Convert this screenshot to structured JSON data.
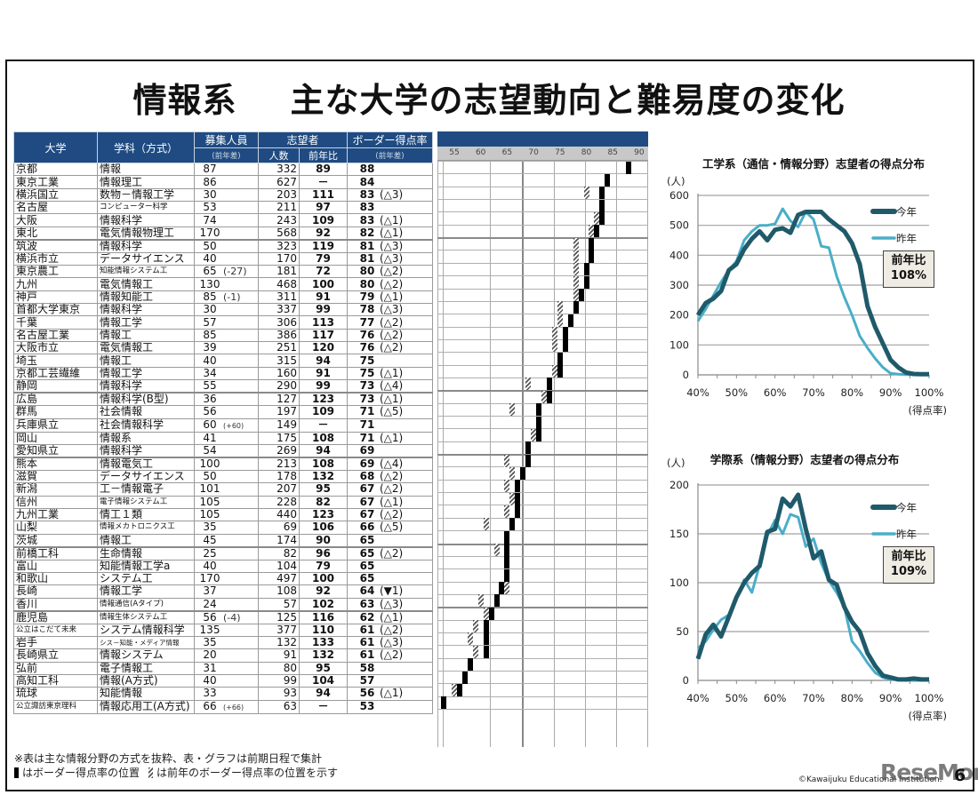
{
  "page": {
    "title_left": "情報系",
    "title_right": "主な大学の志望動向と難易度の変化",
    "page_number": "6",
    "copyright": "©Kawaijuku Educational Institution.",
    "watermark": "ReseMom"
  },
  "table": {
    "headers": {
      "university": "大学",
      "department": "学科（方式）",
      "capacity": "募集人員",
      "capacity_sub": "(前年差)",
      "applicants": "志望者",
      "applicants_count": "人数",
      "applicants_ratio": "前年比",
      "border": "ボーダー得点率",
      "border_sub": "(前年差)"
    },
    "scale_ticks": [
      "55",
      "60",
      "65",
      "70",
      "75",
      "80",
      "85",
      "90"
    ],
    "rows": [
      {
        "uni": "京都",
        "dep": "情報",
        "cap": "87",
        "cap_diff": "",
        "count": "332",
        "ratio": "89",
        "border": "88",
        "border_diff": "",
        "prev": null
      },
      {
        "uni": "東京工業",
        "dep": "情報理工",
        "cap": "86",
        "cap_diff": "",
        "count": "627",
        "ratio": "－",
        "border": "84",
        "border_diff": "",
        "prev": null
      },
      {
        "uni": "横浜国立",
        "dep": "数物－情報工学",
        "cap": "30",
        "cap_diff": "",
        "count": "203",
        "ratio": "111",
        "border": "83",
        "border_diff": "(△3)",
        "prev": 80
      },
      {
        "uni": "名古屋",
        "dep": "コンピューター科学",
        "cap": "53",
        "cap_diff": "",
        "count": "211",
        "ratio": "97",
        "border": "83",
        "border_diff": "",
        "prev": null
      },
      {
        "uni": "大阪",
        "dep": "情報科学",
        "cap": "74",
        "cap_diff": "",
        "count": "243",
        "ratio": "109",
        "border": "83",
        "border_diff": "(△1)",
        "prev": 82
      },
      {
        "uni": "東北",
        "dep": "電気情報物理工",
        "cap": "170",
        "cap_diff": "",
        "count": "568",
        "ratio": "92",
        "border": "82",
        "border_diff": "(△1)",
        "prev": 81
      },
      {
        "uni": "筑波",
        "dep": "情報科学",
        "cap": "50",
        "cap_diff": "",
        "count": "323",
        "ratio": "119",
        "border": "81",
        "border_diff": "(△3)",
        "prev": 78,
        "grp": true
      },
      {
        "uni": "横浜市立",
        "dep": "データサイエンス",
        "cap": "40",
        "cap_diff": "",
        "count": "170",
        "ratio": "79",
        "border": "81",
        "border_diff": "(△3)",
        "prev": 78
      },
      {
        "uni": "東京農工",
        "dep": "知能情報システム工",
        "cap": "65",
        "cap_diff": "(-27)",
        "count": "181",
        "ratio": "72",
        "border": "80",
        "border_diff": "(△2)",
        "prev": 78
      },
      {
        "uni": "九州",
        "dep": "電気情報工",
        "cap": "130",
        "cap_diff": "",
        "count": "468",
        "ratio": "100",
        "border": "80",
        "border_diff": "(△2)",
        "prev": 78
      },
      {
        "uni": "神戸",
        "dep": "情報知能工",
        "cap": "85",
        "cap_diff": "(-1)",
        "count": "311",
        "ratio": "91",
        "border": "79",
        "border_diff": "(△1)",
        "prev": 78
      },
      {
        "uni": "首都大学東京",
        "dep": "情報科学",
        "cap": "30",
        "cap_diff": "",
        "count": "337",
        "ratio": "99",
        "border": "78",
        "border_diff": "(△3)",
        "prev": 75
      },
      {
        "uni": "千葉",
        "dep": "情報工学",
        "cap": "57",
        "cap_diff": "",
        "count": "306",
        "ratio": "113",
        "border": "77",
        "border_diff": "(△2)",
        "prev": 75
      },
      {
        "uni": "名古屋工業",
        "dep": "情報工",
        "cap": "85",
        "cap_diff": "",
        "count": "386",
        "ratio": "117",
        "border": "76",
        "border_diff": "(△2)",
        "prev": 74
      },
      {
        "uni": "大阪市立",
        "dep": "電気情報工",
        "cap": "39",
        "cap_diff": "",
        "count": "251",
        "ratio": "120",
        "border": "76",
        "border_diff": "(△2)",
        "prev": 74
      },
      {
        "uni": "埼玉",
        "dep": "情報工",
        "cap": "40",
        "cap_diff": "",
        "count": "315",
        "ratio": "94",
        "border": "75",
        "border_diff": "",
        "prev": null
      },
      {
        "uni": "京都工芸繊維",
        "dep": "情報工学",
        "cap": "34",
        "cap_diff": "",
        "count": "160",
        "ratio": "91",
        "border": "75",
        "border_diff": "(△1)",
        "prev": 74
      },
      {
        "uni": "静岡",
        "dep": "情報科学",
        "cap": "55",
        "cap_diff": "",
        "count": "290",
        "ratio": "99",
        "border": "73",
        "border_diff": "(△4)",
        "prev": 69
      },
      {
        "uni": "広島",
        "dep": "情報科学(B型)",
        "cap": "36",
        "cap_diff": "",
        "count": "127",
        "ratio": "123",
        "border": "73",
        "border_diff": "(△1)",
        "prev": 72,
        "grp": true
      },
      {
        "uni": "群馬",
        "dep": "社会情報",
        "cap": "56",
        "cap_diff": "",
        "count": "197",
        "ratio": "109",
        "border": "71",
        "border_diff": "(△5)",
        "prev": 66
      },
      {
        "uni": "兵庫県立",
        "dep": "社会情報科学",
        "cap": "60",
        "cap_diff": "(+60)",
        "count": "149",
        "ratio": "－",
        "border": "71",
        "border_diff": "",
        "prev": null
      },
      {
        "uni": "岡山",
        "dep": "情報系",
        "cap": "41",
        "cap_diff": "",
        "count": "175",
        "ratio": "108",
        "border": "71",
        "border_diff": "(△1)",
        "prev": 70
      },
      {
        "uni": "愛知県立",
        "dep": "情報科学",
        "cap": "54",
        "cap_diff": "",
        "count": "269",
        "ratio": "94",
        "border": "69",
        "border_diff": "",
        "prev": null
      },
      {
        "uni": "熊本",
        "dep": "情報電気工",
        "cap": "100",
        "cap_diff": "",
        "count": "213",
        "ratio": "108",
        "border": "69",
        "border_diff": "(△4)",
        "prev": 65,
        "grp": true
      },
      {
        "uni": "滋賀",
        "dep": "データサイエンス",
        "cap": "50",
        "cap_diff": "",
        "count": "178",
        "ratio": "132",
        "border": "68",
        "border_diff": "(△2)",
        "prev": 66
      },
      {
        "uni": "新潟",
        "dep": "工－情報電子",
        "cap": "101",
        "cap_diff": "",
        "count": "207",
        "ratio": "95",
        "border": "67",
        "border_diff": "(△2)",
        "prev": 65
      },
      {
        "uni": "信州",
        "dep": "電子情報システム工",
        "cap": "105",
        "cap_diff": "",
        "count": "228",
        "ratio": "82",
        "border": "67",
        "border_diff": "(△1)",
        "prev": 66
      },
      {
        "uni": "九州工業",
        "dep": "情工１類",
        "cap": "105",
        "cap_diff": "",
        "count": "440",
        "ratio": "123",
        "border": "67",
        "border_diff": "(△2)",
        "prev": 65
      },
      {
        "uni": "山梨",
        "dep": "情報メカトロニクス工",
        "cap": "35",
        "cap_diff": "",
        "count": "69",
        "ratio": "106",
        "border": "66",
        "border_diff": "(△5)",
        "prev": 61
      },
      {
        "uni": "茨城",
        "dep": "情報工",
        "cap": "45",
        "cap_diff": "",
        "count": "174",
        "ratio": "90",
        "border": "65",
        "border_diff": "",
        "prev": null
      },
      {
        "uni": "前橋工科",
        "dep": "生命情報",
        "cap": "25",
        "cap_diff": "",
        "count": "82",
        "ratio": "96",
        "border": "65",
        "border_diff": "(△2)",
        "prev": 63,
        "grp": true
      },
      {
        "uni": "富山",
        "dep": "知能情報工学a",
        "cap": "40",
        "cap_diff": "",
        "count": "104",
        "ratio": "79",
        "border": "65",
        "border_diff": "",
        "prev": null
      },
      {
        "uni": "和歌山",
        "dep": "システム工",
        "cap": "170",
        "cap_diff": "",
        "count": "497",
        "ratio": "100",
        "border": "65",
        "border_diff": "",
        "prev": null
      },
      {
        "uni": "長崎",
        "dep": "情報工学",
        "cap": "37",
        "cap_diff": "",
        "count": "108",
        "ratio": "92",
        "border": "64",
        "border_diff": "(▼1)",
        "prev": 65
      },
      {
        "uni": "香川",
        "dep": "情報通信(Aタイプ)",
        "cap": "24",
        "cap_diff": "",
        "count": "57",
        "ratio": "102",
        "border": "63",
        "border_diff": "(△3)",
        "prev": 60
      },
      {
        "uni": "鹿児島",
        "dep": "情報生体システム工",
        "cap": "56",
        "cap_diff": "(-4)",
        "count": "125",
        "ratio": "116",
        "border": "62",
        "border_diff": "(△1)",
        "prev": 61,
        "grp": true
      },
      {
        "uni": "公立はこだて未来",
        "dep": "システム情報科学",
        "cap": "135",
        "cap_diff": "",
        "count": "377",
        "ratio": "110",
        "border": "61",
        "border_diff": "(△2)",
        "prev": 59
      },
      {
        "uni": "岩手",
        "dep": "シス－知能・メディア情報",
        "cap": "35",
        "cap_diff": "",
        "count": "132",
        "ratio": "133",
        "border": "61",
        "border_diff": "(△3)",
        "prev": 58
      },
      {
        "uni": "長崎県立",
        "dep": "情報システム",
        "cap": "20",
        "cap_diff": "",
        "count": "91",
        "ratio": "132",
        "border": "61",
        "border_diff": "(△2)",
        "prev": 59
      },
      {
        "uni": "弘前",
        "dep": "電子情報工",
        "cap": "31",
        "cap_diff": "",
        "count": "80",
        "ratio": "95",
        "border": "58",
        "border_diff": "",
        "prev": null
      },
      {
        "uni": "高知工科",
        "dep": "情報(A方式)",
        "cap": "40",
        "cap_diff": "",
        "count": "99",
        "ratio": "104",
        "border": "57",
        "border_diff": "",
        "prev": null
      },
      {
        "uni": "琉球",
        "dep": "知能情報",
        "cap": "33",
        "cap_diff": "",
        "count": "93",
        "ratio": "94",
        "border": "56",
        "border_diff": "(△1)",
        "prev": 55
      },
      {
        "uni": "公立諏訪東京理科",
        "dep": "情報応用工(A方式)",
        "cap": "66",
        "cap_diff": "(+66)",
        "count": "63",
        "ratio": "－",
        "border": "53",
        "border_diff": "",
        "prev": null
      }
    ],
    "notes": {
      "line1": "※表は主な情報分野の方式を抜粋、表・グラフは前期日程で集計",
      "legend_now": "はボーダー得点率の位置",
      "legend_prev": "は前年のボーダー得点率の位置を示す"
    }
  },
  "chart_data": [
    {
      "type": "line",
      "title": "工学系（通信・情報分野）志望者の得点分布",
      "ylabel": "(人)",
      "xlabel": "(得点率)",
      "ylim": [
        0,
        600
      ],
      "yticks": [
        "0",
        "100",
        "200",
        "300",
        "400",
        "500",
        "600"
      ],
      "xticks": [
        "40%",
        "50%",
        "60%",
        "70%",
        "80%",
        "90%",
        "100%"
      ],
      "x": [
        40,
        42,
        44,
        46,
        48,
        50,
        52,
        54,
        56,
        58,
        60,
        62,
        64,
        66,
        68,
        70,
        72,
        74,
        76,
        78,
        80,
        82,
        84,
        86,
        88,
        90,
        92,
        94,
        96,
        98,
        100
      ],
      "series": [
        {
          "name": "今年",
          "color": "#1f5a6a",
          "values": [
            200,
            240,
            255,
            280,
            350,
            370,
            420,
            455,
            480,
            450,
            485,
            490,
            475,
            535,
            545,
            545,
            545,
            520,
            500,
            480,
            440,
            370,
            230,
            160,
            105,
            50,
            25,
            8,
            3,
            2,
            2
          ]
        },
        {
          "name": "昨年",
          "color": "#4aaec8",
          "values": [
            180,
            220,
            265,
            310,
            350,
            380,
            450,
            480,
            500,
            500,
            505,
            555,
            515,
            495,
            545,
            520,
            430,
            425,
            330,
            260,
            200,
            130,
            90,
            55,
            25,
            5,
            2,
            1,
            1,
            1,
            0
          ]
        }
      ],
      "legend": [
        "今年",
        "昨年"
      ],
      "legend_position": "right",
      "grid": true,
      "annotation": {
        "label": "前年比",
        "value": "108%"
      }
    },
    {
      "type": "line",
      "title": "学際系（情報分野）志望者の得点分布",
      "ylabel": "(人)",
      "xlabel": "(得点率)",
      "ylim": [
        0,
        200
      ],
      "yticks": [
        "0",
        "50",
        "100",
        "150",
        "200"
      ],
      "xticks": [
        "40%",
        "50%",
        "60%",
        "70%",
        "80%",
        "90%",
        "100%"
      ],
      "x": [
        40,
        42,
        44,
        46,
        48,
        50,
        52,
        54,
        56,
        58,
        60,
        62,
        64,
        66,
        68,
        70,
        72,
        74,
        76,
        78,
        80,
        82,
        84,
        86,
        88,
        90,
        92,
        94,
        96,
        98,
        100
      ],
      "series": [
        {
          "name": "今年",
          "color": "#1f5a6a",
          "values": [
            22,
            47,
            57,
            45,
            65,
            85,
            100,
            110,
            117,
            152,
            155,
            186,
            178,
            190,
            155,
            125,
            132,
            103,
            98,
            75,
            60,
            50,
            28,
            15,
            5,
            3,
            1,
            1,
            2,
            1,
            1
          ]
        },
        {
          "name": "昨年",
          "color": "#4aaec8",
          "values": [
            33,
            40,
            52,
            62,
            67,
            83,
            103,
            90,
            118,
            148,
            164,
            150,
            170,
            167,
            137,
            145,
            120,
            102,
            90,
            75,
            40,
            30,
            18,
            8,
            3,
            1,
            1,
            0,
            0,
            0,
            0
          ]
        }
      ],
      "legend": [
        "今年",
        "昨年"
      ],
      "legend_position": "right",
      "grid": true,
      "annotation": {
        "label": "前年比",
        "value": "109%"
      }
    }
  ]
}
